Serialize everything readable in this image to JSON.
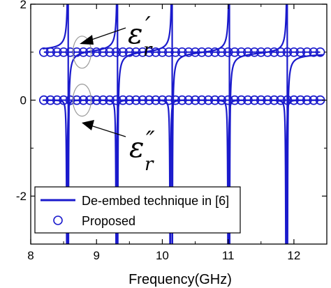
{
  "chart_data": {
    "type": "line",
    "xlabel": "Frequency(GHz)",
    "ylabel": "",
    "xlim": [
      8,
      12.5
    ],
    "ylim": [
      -3,
      2
    ],
    "x_ticks": [
      "8",
      "9",
      "10",
      "11",
      "12"
    ],
    "y_ticks": [
      "-2",
      "0",
      "2"
    ],
    "legend_position": "bottom-left",
    "colors": {
      "series": "#1a1acc",
      "annotation": "#000000",
      "ellipse": "#9a9a9a"
    },
    "series": [
      {
        "name": "De-embed technique in [6]",
        "style": "line",
        "components": [
          {
            "label": "real",
            "baseline": 1.0,
            "resonances_ghz": [
              8.57,
              9.32,
              10.15,
              11.02,
              11.9
            ]
          },
          {
            "label": "imag",
            "baseline": 0.0,
            "resonances_ghz": [
              8.55,
              9.3,
              10.12,
              11.0,
              11.88
            ]
          }
        ]
      },
      {
        "name": "Proposed",
        "style": "markers",
        "marker": "open-circle",
        "x": [
          8.2,
          8.3,
          8.4,
          8.5,
          8.6,
          8.7,
          8.8,
          8.9,
          9.0,
          9.1,
          9.2,
          9.3,
          9.4,
          9.5,
          9.6,
          9.7,
          9.8,
          9.9,
          10.0,
          10.1,
          10.2,
          10.3,
          10.4,
          10.5,
          10.6,
          10.7,
          10.8,
          10.9,
          11.0,
          11.1,
          11.2,
          11.3,
          11.4,
          11.5,
          11.6,
          11.7,
          11.8,
          11.9,
          12.0,
          12.1,
          12.2,
          12.3,
          12.4
        ],
        "y_real": 1.0,
        "y_imag": 0.0
      }
    ],
    "annotations": [
      {
        "symbol": "ε",
        "prime": "′",
        "subscript": "r",
        "target": "real"
      },
      {
        "symbol": "ε",
        "prime": "″",
        "subscript": "r",
        "target": "imag"
      }
    ]
  }
}
